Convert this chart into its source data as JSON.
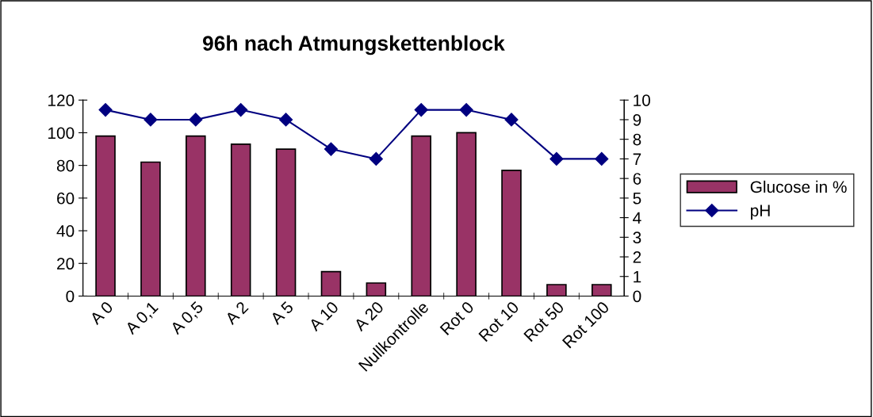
{
  "chart_data": {
    "type": "bar",
    "title": "96h nach Atmungskettenblock",
    "categories": [
      "A 0",
      "A 0,1",
      "A 0,5",
      "A 2",
      "A 5",
      "A 10",
      "A 20",
      "Nullkontrolle",
      "Rot 0",
      "Rot 10",
      "Rot 50",
      "Rot 100"
    ],
    "series": [
      {
        "name": "Glucose in %",
        "color": "#993366",
        "values": [
          98,
          82,
          98,
          93,
          90,
          15,
          8,
          98,
          100,
          77,
          7,
          7
        ]
      },
      {
        "name": "pH",
        "type": "line",
        "axis": "y2",
        "color": "#000080",
        "values": [
          9.5,
          9,
          9,
          9.5,
          9,
          7.5,
          7,
          9.5,
          9.5,
          9,
          7,
          7
        ]
      }
    ],
    "ylim": [
      0,
      120
    ],
    "yticks": [
      0,
      20,
      40,
      60,
      80,
      100,
      120
    ],
    "y2lim": [
      0,
      10
    ],
    "y2ticks": [
      0,
      1,
      2,
      3,
      4,
      5,
      6,
      7,
      8,
      9,
      10
    ],
    "grid": false,
    "legend": "right",
    "marker": "diamond"
  }
}
